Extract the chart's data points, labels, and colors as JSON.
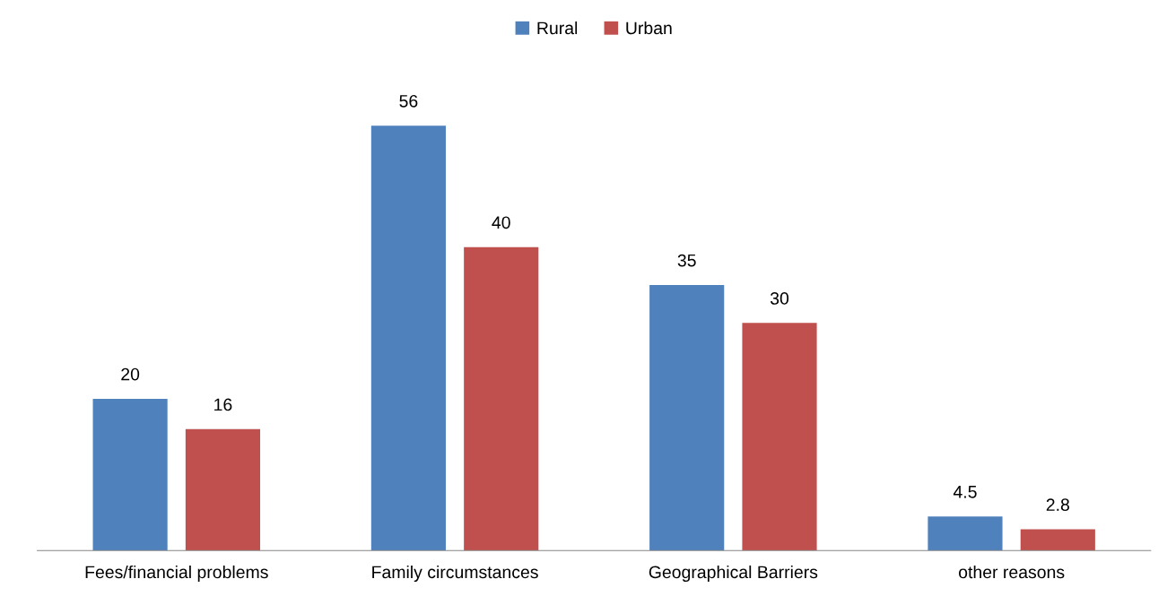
{
  "chart_data": {
    "type": "bar",
    "categories": [
      "Fees/financial problems",
      "Family circumstances",
      "Geographical Barriers",
      "other reasons"
    ],
    "series": [
      {
        "name": "Rural",
        "color": "#4f81bd",
        "values": [
          20,
          56,
          35,
          4.5
        ]
      },
      {
        "name": "Urban",
        "color": "#c0504d",
        "values": [
          16,
          40,
          30,
          2.8
        ]
      }
    ],
    "data_labels": true,
    "legend": "top",
    "grid": false,
    "tick_labels": "x"
  }
}
